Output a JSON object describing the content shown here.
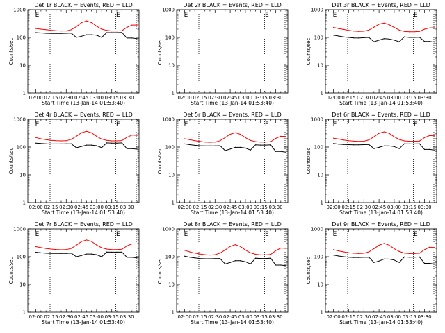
{
  "chart_data": [
    {
      "type": "line",
      "title": "Det 1r BLACK = Events, RED = LLD",
      "xlabel": "Start Time (13-Jan-14 01:53:40)",
      "ylabel": "Counts/sec",
      "has_data": true,
      "x_minutes": [
        0,
        5,
        10,
        15,
        20,
        25,
        30,
        35,
        40,
        45,
        50,
        55,
        60,
        65,
        70,
        75,
        80,
        85,
        90,
        95,
        100
      ],
      "y_ticks": [
        "1",
        "10",
        "100",
        "1000"
      ],
      "ylim": [
        1,
        1000
      ],
      "scale": "log",
      "x_ticks": [
        "02:00",
        "02:15",
        "02:30",
        "02:45",
        "03:00",
        "03:15",
        "03:30"
      ],
      "dotted_lines_minutes": [
        14,
        79
      ],
      "flag_minutes": [
        0,
        80
      ],
      "flag_label": "E",
      "series": [
        {
          "color": "#ff0000",
          "values": [
            210,
            200,
            190,
            182,
            176,
            172,
            172,
            190,
            245,
            340,
            395,
            345,
            255,
            200,
            180,
            172,
            172,
            176,
            230,
            280,
            280
          ]
        },
        {
          "color": "#000000",
          "values": [
            150,
            145,
            141,
            140,
            140,
            140,
            141,
            143,
            100,
            110,
            125,
            125,
            120,
            100,
            150,
            150,
            150,
            152,
            95,
            95,
            90
          ]
        }
      ]
    },
    {
      "type": "line",
      "title": "Det 2r BLACK = Events, RED = LLD",
      "xlabel": "Start Time (13-Jan-14 01:53:40)",
      "ylabel": "Counts/sec",
      "has_data": false,
      "x_minutes": [],
      "y_ticks": [
        "1",
        "10",
        "100",
        "1000"
      ],
      "ylim": [
        1,
        1000
      ],
      "scale": "log",
      "x_ticks": [
        "02:00",
        "02:15",
        "02:30",
        "02:45",
        "03:00",
        "03:15",
        "03:30"
      ],
      "dotted_lines_minutes": [
        14,
        79
      ],
      "flag_minutes": [
        0,
        80
      ],
      "flag_label": "E",
      "series": []
    },
    {
      "type": "line",
      "title": "Det 3r BLACK = Events, RED = LLD",
      "xlabel": "Start Time (13-Jan-14 01:53:40)",
      "ylabel": "Counts/sec",
      "has_data": true,
      "x_minutes": [
        0,
        5,
        10,
        15,
        20,
        25,
        30,
        35,
        40,
        45,
        50,
        55,
        60,
        65,
        70,
        75,
        80,
        85,
        90,
        95,
        100
      ],
      "y_ticks": [
        "1",
        "10",
        "100",
        "1000"
      ],
      "ylim": [
        1,
        1000
      ],
      "scale": "log",
      "x_ticks": [
        "02:00",
        "02:15",
        "02:30",
        "02:45",
        "03:00",
        "03:15",
        "03:30"
      ],
      "dotted_lines_minutes": [
        14,
        79
      ],
      "flag_minutes": [
        0,
        80
      ],
      "flag_label": "E",
      "series": [
        {
          "color": "#ff0000",
          "values": [
            230,
            210,
            195,
            180,
            170,
            165,
            168,
            185,
            235,
            300,
            330,
            290,
            230,
            185,
            165,
            160,
            160,
            165,
            200,
            220,
            225
          ]
        },
        {
          "color": "#000000",
          "values": [
            120,
            112,
            105,
            100,
            96,
            95,
            98,
            100,
            70,
            80,
            90,
            88,
            80,
            70,
            105,
            100,
            100,
            102,
            72,
            72,
            68
          ]
        }
      ]
    },
    {
      "type": "line",
      "title": "Det 4r BLACK = Events, RED = LLD",
      "xlabel": "Start Time (13-Jan-14 01:53:40)",
      "ylabel": "Counts/sec",
      "has_data": true,
      "x_minutes": [
        0,
        5,
        10,
        15,
        20,
        25,
        30,
        35,
        40,
        45,
        50,
        55,
        60,
        65,
        70,
        75,
        80,
        85,
        90,
        95,
        100
      ],
      "y_ticks": [
        "1",
        "10",
        "100",
        "1000"
      ],
      "ylim": [
        1,
        1000
      ],
      "scale": "log",
      "x_ticks": [
        "02:00",
        "02:15",
        "02:30",
        "02:45",
        "03:00",
        "03:15",
        "03:30"
      ],
      "dotted_lines_minutes": [
        14,
        79
      ],
      "flag_minutes": [
        0,
        80
      ],
      "flag_label": "E",
      "series": [
        {
          "color": "#ff0000",
          "values": [
            220,
            200,
            185,
            175,
            170,
            168,
            170,
            190,
            245,
            330,
            370,
            330,
            245,
            195,
            175,
            168,
            168,
            172,
            225,
            270,
            265
          ]
        },
        {
          "color": "#000000",
          "values": [
            140,
            135,
            132,
            130,
            130,
            130,
            131,
            132,
            95,
            105,
            118,
            118,
            112,
            95,
            142,
            140,
            140,
            142,
            88,
            88,
            84
          ]
        }
      ]
    },
    {
      "type": "line",
      "title": "Det 5r BLACK = Events, RED = LLD",
      "xlabel": "Start Time (13-Jan-14 01:53:40)",
      "ylabel": "Counts/sec",
      "has_data": true,
      "x_minutes": [
        0,
        5,
        10,
        15,
        20,
        25,
        30,
        35,
        40,
        45,
        50,
        55,
        60,
        65,
        70,
        75,
        80,
        85,
        90,
        95,
        100
      ],
      "y_ticks": [
        "1",
        "10",
        "100",
        "1000"
      ],
      "ylim": [
        1,
        1000
      ],
      "scale": "log",
      "x_ticks": [
        "02:00",
        "02:15",
        "02:30",
        "02:45",
        "03:00",
        "03:15",
        "03:30"
      ],
      "dotted_lines_minutes": [
        14,
        79
      ],
      "flag_minutes": [
        0,
        80
      ],
      "flag_label": "E",
      "series": [
        {
          "color": "#ff0000",
          "values": [
            200,
            185,
            170,
            160,
            152,
            150,
            152,
            170,
            220,
            290,
            330,
            290,
            220,
            175,
            158,
            152,
            152,
            156,
            205,
            245,
            240
          ]
        },
        {
          "color": "#000000",
          "values": [
            130,
            122,
            116,
            112,
            110,
            110,
            111,
            112,
            75,
            85,
            98,
            98,
            92,
            78,
            120,
            118,
            118,
            120,
            70,
            70,
            66
          ]
        }
      ]
    },
    {
      "type": "line",
      "title": "Det 6r BLACK = Events, RED = LLD",
      "xlabel": "Start Time (13-Jan-14 01:53:40)",
      "ylabel": "Counts/sec",
      "has_data": true,
      "x_minutes": [
        0,
        5,
        10,
        15,
        20,
        25,
        30,
        35,
        40,
        45,
        50,
        55,
        60,
        65,
        70,
        75,
        80,
        85,
        90,
        95,
        100
      ],
      "y_ticks": [
        "1",
        "10",
        "100",
        "1000"
      ],
      "ylim": [
        1,
        1000
      ],
      "scale": "log",
      "x_ticks": [
        "02:00",
        "02:15",
        "02:30",
        "02:45",
        "03:00",
        "03:15",
        "03:30"
      ],
      "dotted_lines_minutes": [
        14,
        79
      ],
      "flag_minutes": [
        0,
        80
      ],
      "flag_label": "E",
      "series": [
        {
          "color": "#ff0000",
          "values": [
            210,
            195,
            180,
            170,
            164,
            160,
            163,
            182,
            235,
            315,
            355,
            315,
            235,
            188,
            168,
            162,
            162,
            166,
            220,
            260,
            255
          ]
        },
        {
          "color": "#000000",
          "values": [
            135,
            128,
            124,
            122,
            121,
            121,
            122,
            124,
            88,
            98,
            110,
            110,
            104,
            88,
            132,
            130,
            130,
            132,
            82,
            82,
            78
          ]
        }
      ]
    },
    {
      "type": "line",
      "title": "Det 7r BLACK = Events, RED = LLD",
      "xlabel": "Start Time (13-Jan-14 01:53:40)",
      "ylabel": "Counts/sec",
      "has_data": true,
      "x_minutes": [
        0,
        5,
        10,
        15,
        20,
        25,
        30,
        35,
        40,
        45,
        50,
        55,
        60,
        65,
        70,
        75,
        80,
        85,
        90,
        95,
        100
      ],
      "y_ticks": [
        "1",
        "10",
        "100",
        "1000"
      ],
      "ylim": [
        1,
        1000
      ],
      "scale": "log",
      "x_ticks": [
        "02:00",
        "02:15",
        "02:30",
        "02:45",
        "03:00",
        "03:15",
        "03:30"
      ],
      "dotted_lines_minutes": [
        14,
        79
      ],
      "flag_minutes": [
        0,
        80
      ],
      "flag_label": "E",
      "series": [
        {
          "color": "#ff0000",
          "values": [
            230,
            212,
            198,
            188,
            182,
            178,
            180,
            200,
            260,
            350,
            400,
            355,
            265,
            210,
            188,
            180,
            180,
            185,
            245,
            290,
            290
          ]
        },
        {
          "color": "#000000",
          "values": [
            145,
            138,
            134,
            132,
            131,
            131,
            132,
            134,
            100,
            110,
            125,
            125,
            118,
            100,
            148,
            146,
            146,
            148,
            95,
            95,
            90
          ]
        }
      ]
    },
    {
      "type": "line",
      "title": "Det 8r BLACK = Events, RED = LLD",
      "xlabel": "Start Time (13-Jan-14 01:53:40)",
      "ylabel": "Counts/sec",
      "has_data": true,
      "x_minutes": [
        0,
        5,
        10,
        15,
        20,
        25,
        30,
        35,
        40,
        45,
        50,
        55,
        60,
        65,
        70,
        75,
        80,
        85,
        90,
        95,
        100
      ],
      "y_ticks": [
        "1",
        "10",
        "100",
        "1000"
      ],
      "ylim": [
        1,
        1000
      ],
      "scale": "log",
      "x_ticks": [
        "02:00",
        "02:15",
        "02:30",
        "02:45",
        "03:00",
        "03:15",
        "03:30"
      ],
      "dotted_lines_minutes": [
        14,
        79
      ],
      "flag_minutes": [
        0,
        80
      ],
      "flag_label": "E",
      "series": [
        {
          "color": "#ff0000",
          "values": [
            170,
            150,
            135,
            125,
            118,
            115,
            118,
            135,
            175,
            235,
            270,
            235,
            175,
            138,
            122,
            116,
            116,
            120,
            165,
            205,
            200
          ]
        },
        {
          "color": "#000000",
          "values": [
            105,
            96,
            90,
            86,
            84,
            84,
            85,
            86,
            55,
            62,
            72,
            72,
            66,
            55,
            88,
            86,
            86,
            88,
            50,
            50,
            48
          ]
        }
      ]
    },
    {
      "type": "line",
      "title": "Det 9r BLACK = Events, RED = LLD",
      "xlabel": "Start Time (13-Jan-14 01:53:40)",
      "ylabel": "Counts/sec",
      "has_data": true,
      "x_minutes": [
        0,
        5,
        10,
        15,
        20,
        25,
        30,
        35,
        40,
        45,
        50,
        55,
        60,
        65,
        70,
        75,
        80,
        85,
        90,
        95,
        100
      ],
      "y_ticks": [
        "1",
        "10",
        "100",
        "1000"
      ],
      "ylim": [
        1,
        1000
      ],
      "scale": "log",
      "x_ticks": [
        "02:00",
        "02:15",
        "02:30",
        "02:45",
        "03:00",
        "03:15",
        "03:30"
      ],
      "dotted_lines_minutes": [
        14,
        79
      ],
      "flag_minutes": [
        0,
        80
      ],
      "flag_label": "E",
      "series": [
        {
          "color": "#ff0000",
          "values": [
            180,
            162,
            150,
            140,
            134,
            130,
            133,
            150,
            195,
            260,
            300,
            262,
            195,
            155,
            136,
            130,
            130,
            134,
            180,
            220,
            215
          ]
        },
        {
          "color": "#000000",
          "values": [
            115,
            106,
            100,
            96,
            94,
            94,
            95,
            96,
            62,
            70,
            82,
            82,
            76,
            62,
            98,
            96,
            96,
            98,
            58,
            58,
            55
          ]
        }
      ]
    }
  ]
}
